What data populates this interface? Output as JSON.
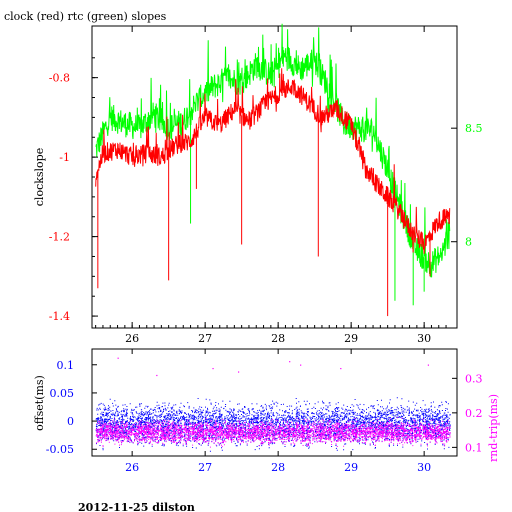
{
  "title": "clock (red) rtc (green) slopes",
  "footer": "2012-11-25 dilston",
  "colors": {
    "clock": "#ff0000",
    "rtc": "#00ff00",
    "offset": "#0000ff",
    "roundtrip": "#ff00ff",
    "frame": "#000000"
  },
  "chart_data": [
    {
      "type": "line",
      "title": "clock (red) rtc (green) slopes",
      "xlabel": "",
      "ylabel": "clockslope",
      "y2label": "",
      "xlim": [
        25.45,
        30.45
      ],
      "ylim": [
        -1.43,
        -0.67
      ],
      "y2lim": [
        7.62,
        8.95
      ],
      "xticks": [
        26,
        27,
        28,
        29,
        30
      ],
      "xtick_labels": [
        "26",
        "27",
        "28",
        "29",
        "30"
      ],
      "yticks": [
        -0.8,
        -1,
        -1.2,
        -1.4
      ],
      "ytick_labels": [
        "-0.8",
        "-1",
        "-1.2",
        "-1.4"
      ],
      "y2ticks": [
        8.5,
        8
      ],
      "y2tick_labels": [
        "8.5",
        "8"
      ],
      "series": [
        {
          "name": "clock",
          "color": "#ff0000",
          "axis": "left",
          "x": [
            25.5,
            25.6,
            25.8,
            26.0,
            26.2,
            26.4,
            26.6,
            26.8,
            27.0,
            27.2,
            27.4,
            27.6,
            27.8,
            28.0,
            28.2,
            28.4,
            28.6,
            28.8,
            29.0,
            29.2,
            29.4,
            29.6,
            29.8,
            30.0,
            30.2,
            30.35
          ],
          "y": [
            -1.05,
            -0.99,
            -0.98,
            -1.0,
            -0.99,
            -1.0,
            -0.97,
            -0.96,
            -0.9,
            -0.92,
            -0.88,
            -0.91,
            -0.87,
            -0.84,
            -0.82,
            -0.86,
            -0.9,
            -0.88,
            -0.92,
            -1.03,
            -1.08,
            -1.12,
            -1.18,
            -1.22,
            -1.16,
            -1.15
          ],
          "spikes": [
            {
              "x": 25.53,
              "y": -1.33
            },
            {
              "x": 26.5,
              "y": -1.31
            },
            {
              "x": 26.88,
              "y": -1.08
            },
            {
              "x": 27.5,
              "y": -1.22
            },
            {
              "x": 28.55,
              "y": -1.25
            },
            {
              "x": 29.5,
              "y": -1.4
            },
            {
              "x": 30.08,
              "y": -1.3
            }
          ]
        },
        {
          "name": "rtc",
          "color": "#00ff00",
          "axis": "right",
          "x": [
            25.5,
            25.7,
            25.9,
            26.1,
            26.3,
            26.5,
            26.7,
            26.9,
            27.1,
            27.3,
            27.5,
            27.7,
            27.9,
            28.1,
            28.3,
            28.5,
            28.7,
            28.9,
            29.1,
            29.3,
            29.5,
            29.7,
            29.9,
            30.1,
            30.25,
            30.35
          ],
          "y": [
            8.4,
            8.55,
            8.52,
            8.5,
            8.56,
            8.5,
            8.53,
            8.62,
            8.68,
            8.72,
            8.7,
            8.78,
            8.73,
            8.82,
            8.76,
            8.8,
            8.67,
            8.52,
            8.5,
            8.49,
            8.32,
            8.12,
            7.96,
            7.9,
            7.95,
            8.05
          ],
          "spikes": [
            {
              "x": 26.8,
              "y": 8.08
            },
            {
              "x": 29.6,
              "y": 7.74
            },
            {
              "x": 29.85,
              "y": 7.72
            },
            {
              "x": 30.0,
              "y": 7.78
            }
          ]
        }
      ]
    },
    {
      "type": "scatter",
      "xlabel": "",
      "ylabel": "offset(ms)",
      "y2label": "rnd-trip(ms)",
      "xlim": [
        25.45,
        30.45
      ],
      "ylim": [
        -0.062,
        0.128
      ],
      "y2lim": [
        0.075,
        0.385
      ],
      "xticks": [
        26,
        27,
        28,
        29,
        30
      ],
      "xtick_labels": [
        "26",
        "27",
        "28",
        "29",
        "30"
      ],
      "yticks": [
        0.1,
        0.05,
        0,
        -0.05
      ],
      "ytick_labels": [
        "0.1",
        "0.05",
        "0",
        "-0.05"
      ],
      "y2ticks": [
        0.3,
        0.2,
        0.1
      ],
      "y2tick_labels": [
        "0.3",
        "0.2",
        "0.1"
      ],
      "series": [
        {
          "name": "offset",
          "color": "#0000ff",
          "axis": "left",
          "center": -0.005,
          "spread": 0.05,
          "x_range": [
            25.5,
            30.35
          ]
        },
        {
          "name": "roundtrip",
          "color": "#ff00ff",
          "axis": "right",
          "center": 0.145,
          "spread": 0.045,
          "x_range": [
            25.5,
            30.35
          ],
          "outliers": [
            {
              "x": 25.8,
              "y": 0.36
            },
            {
              "x": 26.33,
              "y": 0.31
            },
            {
              "x": 27.1,
              "y": 0.33
            },
            {
              "x": 27.45,
              "y": 0.32
            },
            {
              "x": 28.15,
              "y": 0.35
            },
            {
              "x": 28.3,
              "y": 0.34
            },
            {
              "x": 28.85,
              "y": 0.33
            },
            {
              "x": 30.05,
              "y": 0.34
            }
          ]
        }
      ]
    }
  ]
}
